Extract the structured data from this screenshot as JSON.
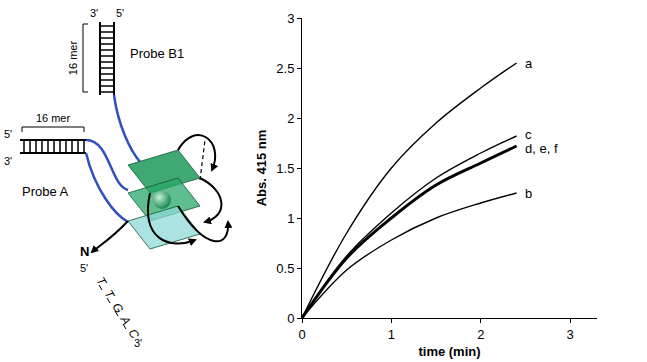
{
  "diagram": {
    "probe_a": "Probe A",
    "probe_b1": "Probe B1",
    "length_labels": [
      "16 mer",
      "16 mer"
    ],
    "probe_b1_ends": [
      "3'",
      "5'"
    ],
    "probe_a_ends": [
      "5'",
      "3'"
    ],
    "target_label": "N",
    "target_ends": [
      "5'",
      "3'"
    ],
    "target_sequence": [
      "T",
      "T",
      "G",
      "A",
      "C"
    ]
  },
  "chart_data": {
    "type": "line",
    "x_label": "time (min)",
    "y_label": "Abs. 415 nm",
    "x": [
      0,
      0.5,
      1,
      1.5,
      2,
      2.4
    ],
    "series": [
      {
        "name": "a",
        "color": "#000000",
        "values": [
          0,
          0.85,
          1.5,
          1.95,
          2.3,
          2.55
        ]
      },
      {
        "name": "b",
        "color": "#000000",
        "values": [
          0,
          0.48,
          0.78,
          1.0,
          1.15,
          1.25
        ]
      },
      {
        "name": "c",
        "color": "#000000",
        "values": [
          0,
          0.62,
          1.05,
          1.4,
          1.65,
          1.82
        ]
      },
      {
        "name": "d, e, f",
        "color": "#000000",
        "line_style": "thick",
        "values": [
          0,
          0.6,
          1.0,
          1.33,
          1.55,
          1.72
        ]
      }
    ],
    "xlim": [
      0,
      3.3
    ],
    "xticks": [
      0,
      1,
      2,
      3
    ],
    "ylim": [
      0,
      3
    ],
    "yticks": [
      0,
      0.5,
      1,
      1.5,
      2,
      2.5,
      3
    ],
    "grid": false
  }
}
